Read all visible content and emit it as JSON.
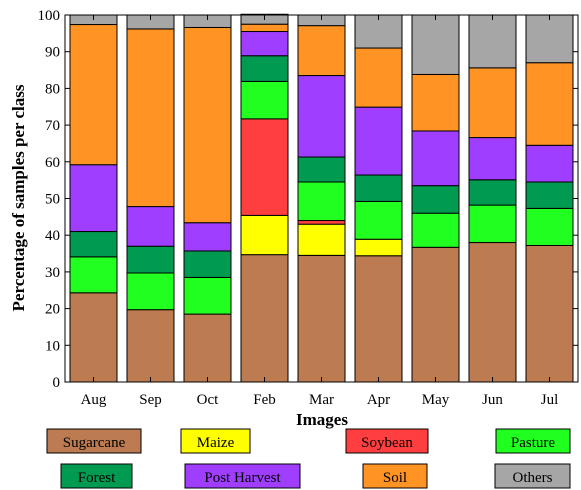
{
  "chart_data": {
    "type": "bar",
    "stacked": true,
    "title": "",
    "xlabel": "Images",
    "ylabel": "Percentage of samples per class",
    "ylim": [
      0,
      100
    ],
    "yticks": [
      0,
      10,
      20,
      30,
      40,
      50,
      60,
      70,
      80,
      90,
      100
    ],
    "grid": false,
    "legend_position": "bottom",
    "categories": [
      "Aug",
      "Sep",
      "Oct",
      "Feb",
      "Mar",
      "Apr",
      "May",
      "Jun",
      "Jul"
    ],
    "series": [
      {
        "name": "Sugarcane",
        "color": "#bd7b51",
        "values": [
          24.3,
          19.7,
          18.5,
          34.7,
          34.5,
          34.4,
          36.7,
          38.0,
          37.2
        ]
      },
      {
        "name": "Maize",
        "color": "#ffff00",
        "values": [
          0,
          0,
          0,
          10.7,
          8.5,
          4.5,
          0,
          0,
          0
        ]
      },
      {
        "name": "Soybean",
        "color": "#ff3f3f",
        "values": [
          0,
          0,
          0,
          26.3,
          1.0,
          0,
          0,
          0,
          0
        ]
      },
      {
        "name": "Pasture",
        "color": "#21ff21",
        "values": [
          9.8,
          10.0,
          10.0,
          10.2,
          10.5,
          10.3,
          9.3,
          10.2,
          10.1
        ]
      },
      {
        "name": "Forest",
        "color": "#009a50",
        "values": [
          6.9,
          7.3,
          7.2,
          7.0,
          6.8,
          7.2,
          7.5,
          6.9,
          7.2
        ]
      },
      {
        "name": "Post Harvest",
        "color": "#a03eff",
        "values": [
          18.2,
          10.8,
          7.7,
          6.6,
          22.2,
          18.5,
          14.9,
          11.5,
          10.0
        ]
      },
      {
        "name": "Soil",
        "color": "#ff9324",
        "values": [
          38.2,
          48.4,
          53.2,
          2.0,
          13.6,
          16.1,
          15.4,
          19.0,
          22.5
        ]
      },
      {
        "name": "Others",
        "color": "#a6a6a6",
        "values": [
          2.6,
          3.8,
          3.4,
          2.7,
          2.9,
          9.0,
          16.2,
          14.4,
          13.0
        ]
      }
    ]
  }
}
